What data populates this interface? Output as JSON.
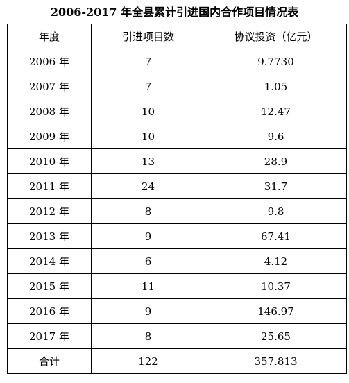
{
  "title": "2006-2017 年全县累计引进国内合作项目情况表",
  "headers": [
    "年度",
    "引进项目数",
    "协议投资（亿元）"
  ],
  "rows": [
    [
      "2006 年",
      "7",
      "9.7730"
    ],
    [
      "2007 年",
      "7",
      "1.05"
    ],
    [
      "2008 年",
      "10",
      "12.47"
    ],
    [
      "2009 年",
      "10",
      "9.6"
    ],
    [
      "2010 年",
      "13",
      "28.9"
    ],
    [
      "2011 年",
      "24",
      "31.7"
    ],
    [
      "2012 年",
      "8",
      "9.8"
    ],
    [
      "2013 年",
      "9",
      "67.41"
    ],
    [
      "2014 年",
      "6",
      "4.12"
    ],
    [
      "2015 年",
      "11",
      "10.37"
    ],
    [
      "2016 年",
      "9",
      "146.97"
    ],
    [
      "2017 年",
      "8",
      "25.65"
    ]
  ],
  "total": [
    "合计",
    "122",
    "357.813"
  ]
}
